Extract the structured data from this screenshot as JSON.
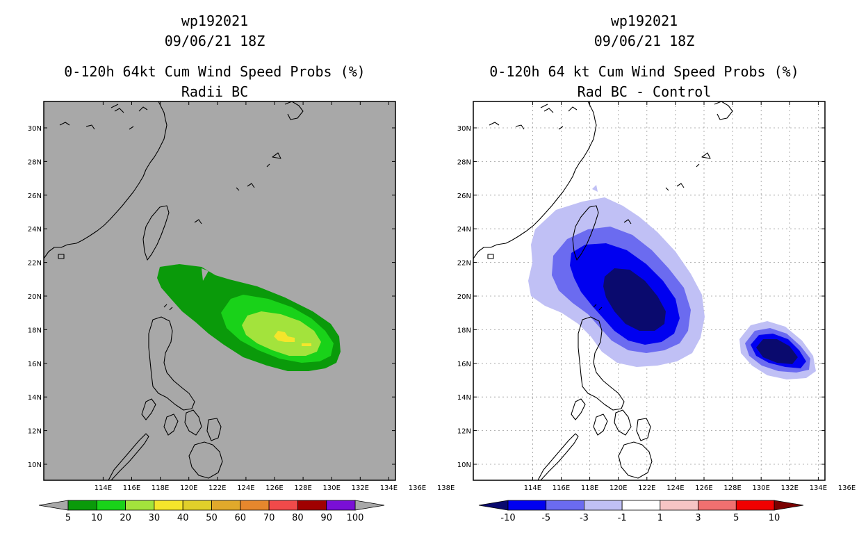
{
  "colors": {
    "gray_bg": "#a8a8a8",
    "green_dark": "#0a9a0a",
    "green": "#19d219",
    "green_light": "#a3e33c",
    "yellow": "#f5e52b",
    "blue_dark": "#0a0a6e",
    "blue": "#0000f0",
    "blue_mid": "#6b6bf0",
    "blue_light": "#c0c0f5"
  },
  "left_panel": {
    "title1": "wp192021",
    "title2": "09/06/21 18Z",
    "title3": "0-120h 64kt Cum Wind Speed Probs (%)",
    "title4": "Radii BC"
  },
  "right_panel": {
    "title1": "wp192021",
    "title2": "09/06/21 18Z",
    "title3": "0-120h 64 kt Cum Wind Speed Probs (%)",
    "title4": "Rad BC - Control"
  },
  "map": {
    "lon_labels": [
      "114E",
      "116E",
      "118E",
      "120E",
      "122E",
      "124E",
      "126E",
      "128E",
      "130E",
      "132E",
      "134E",
      "136E",
      "138E"
    ],
    "lat_labels": [
      "30N",
      "28N",
      "26N",
      "24N",
      "22N",
      "20N",
      "18N",
      "16N",
      "14N",
      "12N",
      "10N"
    ]
  },
  "left_colorbar": {
    "labels": [
      "5",
      "10",
      "20",
      "30",
      "40",
      "50",
      "60",
      "70",
      "80",
      "90",
      "100"
    ],
    "colors": [
      "#0a9a0a",
      "#19d219",
      "#a3e33c",
      "#f5e52b",
      "#e1cf2a",
      "#e0a92b",
      "#e6872d",
      "#f04a4a",
      "#a00000",
      "#7a0fd6"
    ]
  },
  "right_colorbar": {
    "labels": [
      "-10",
      "-5",
      "-3",
      "-1",
      "1",
      "3",
      "5",
      "10"
    ],
    "colors": [
      "#0000f0",
      "#6b6bf0",
      "#c0c0f5",
      "#ffffff",
      "#f7c4c4",
      "#f07070",
      "#f00000"
    ],
    "end_low": "#0a0a6e",
    "end_high": "#7a0000"
  }
}
